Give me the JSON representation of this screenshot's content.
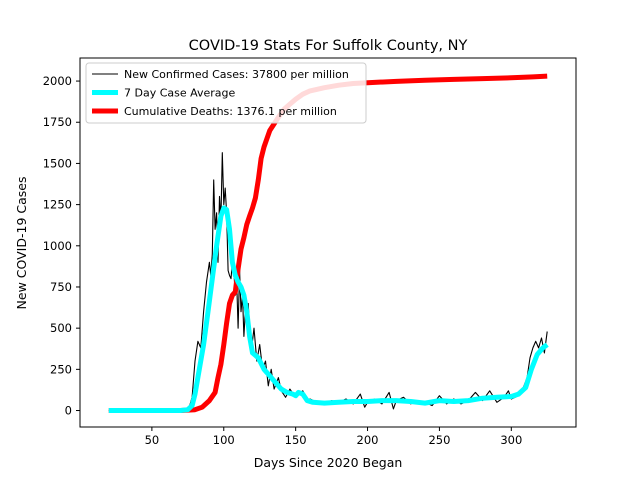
{
  "chart_data": {
    "type": "line",
    "title": "COVID-19 Stats For Suffolk County, NY",
    "xlabel": "Days Since 2020 Began",
    "ylabel": "New COVID-19 Cases",
    "xlim": [
      0,
      345
    ],
    "ylim": [
      -100,
      2140
    ],
    "xticks": [
      50,
      100,
      150,
      200,
      250,
      300
    ],
    "yticks": [
      0,
      250,
      500,
      750,
      1000,
      1250,
      1500,
      1750,
      2000
    ],
    "grid": false,
    "legend_position": "top-left",
    "series": [
      {
        "name": "New Confirmed Cases: 37800 per million",
        "color": "#000000",
        "points": [
          [
            20,
            0
          ],
          [
            30,
            0
          ],
          [
            40,
            0
          ],
          [
            50,
            0
          ],
          [
            60,
            0
          ],
          [
            70,
            0
          ],
          [
            74,
            5
          ],
          [
            76,
            20
          ],
          [
            78,
            80
          ],
          [
            80,
            300
          ],
          [
            82,
            420
          ],
          [
            84,
            380
          ],
          [
            86,
            600
          ],
          [
            88,
            780
          ],
          [
            90,
            900
          ],
          [
            91,
            820
          ],
          [
            92,
            950
          ],
          [
            93,
            1400
          ],
          [
            94,
            1100
          ],
          [
            95,
            1200
          ],
          [
            96,
            900
          ],
          [
            97,
            1300
          ],
          [
            98,
            1150
          ],
          [
            99,
            1565
          ],
          [
            100,
            1250
          ],
          [
            101,
            1350
          ],
          [
            102,
            1200
          ],
          [
            103,
            850
          ],
          [
            104,
            820
          ],
          [
            105,
            800
          ],
          [
            106,
            900
          ],
          [
            107,
            850
          ],
          [
            108,
            700
          ],
          [
            109,
            780
          ],
          [
            110,
            500
          ],
          [
            111,
            850
          ],
          [
            112,
            600
          ],
          [
            113,
            700
          ],
          [
            114,
            450
          ],
          [
            115,
            600
          ],
          [
            117,
            650
          ],
          [
            119,
            350
          ],
          [
            121,
            500
          ],
          [
            123,
            300
          ],
          [
            125,
            400
          ],
          [
            127,
            250
          ],
          [
            129,
            300
          ],
          [
            131,
            150
          ],
          [
            133,
            250
          ],
          [
            135,
            130
          ],
          [
            138,
            200
          ],
          [
            140,
            120
          ],
          [
            143,
            80
          ],
          [
            146,
            130
          ],
          [
            149,
            90
          ],
          [
            152,
            100
          ],
          [
            155,
            120
          ],
          [
            158,
            60
          ],
          [
            160,
            70
          ],
          [
            165,
            50
          ],
          [
            170,
            40
          ],
          [
            175,
            60
          ],
          [
            180,
            50
          ],
          [
            185,
            70
          ],
          [
            190,
            40
          ],
          [
            195,
            100
          ],
          [
            198,
            20
          ],
          [
            200,
            50
          ],
          [
            205,
            70
          ],
          [
            210,
            40
          ],
          [
            215,
            110
          ],
          [
            218,
            10
          ],
          [
            220,
            60
          ],
          [
            225,
            80
          ],
          [
            230,
            40
          ],
          [
            235,
            60
          ],
          [
            240,
            50
          ],
          [
            245,
            30
          ],
          [
            250,
            90
          ],
          [
            255,
            40
          ],
          [
            260,
            70
          ],
          [
            265,
            40
          ],
          [
            270,
            60
          ],
          [
            275,
            110
          ],
          [
            280,
            60
          ],
          [
            285,
            120
          ],
          [
            290,
            50
          ],
          [
            295,
            80
          ],
          [
            298,
            120
          ],
          [
            300,
            70
          ],
          [
            305,
            90
          ],
          [
            308,
            130
          ],
          [
            311,
            200
          ],
          [
            313,
            320
          ],
          [
            315,
            380
          ],
          [
            317,
            420
          ],
          [
            319,
            380
          ],
          [
            321,
            440
          ],
          [
            323,
            350
          ],
          [
            325,
            480
          ]
        ]
      },
      {
        "name": "7 Day Case Average",
        "color": "#00ffff",
        "points": [
          [
            20,
            0
          ],
          [
            40,
            0
          ],
          [
            60,
            0
          ],
          [
            70,
            0
          ],
          [
            75,
            5
          ],
          [
            78,
            30
          ],
          [
            80,
            100
          ],
          [
            83,
            250
          ],
          [
            86,
            400
          ],
          [
            89,
            600
          ],
          [
            92,
            800
          ],
          [
            95,
            1000
          ],
          [
            98,
            1180
          ],
          [
            100,
            1230
          ],
          [
            102,
            1220
          ],
          [
            104,
            1100
          ],
          [
            106,
            900
          ],
          [
            108,
            820
          ],
          [
            110,
            780
          ],
          [
            112,
            750
          ],
          [
            114,
            700
          ],
          [
            116,
            600
          ],
          [
            118,
            450
          ],
          [
            120,
            350
          ],
          [
            124,
            320
          ],
          [
            128,
            250
          ],
          [
            132,
            210
          ],
          [
            136,
            170
          ],
          [
            140,
            130
          ],
          [
            144,
            110
          ],
          [
            148,
            100
          ],
          [
            150,
            90
          ],
          [
            152,
            110
          ],
          [
            155,
            100
          ],
          [
            158,
            60
          ],
          [
            162,
            50
          ],
          [
            170,
            45
          ],
          [
            180,
            50
          ],
          [
            190,
            55
          ],
          [
            200,
            55
          ],
          [
            210,
            60
          ],
          [
            220,
            60
          ],
          [
            230,
            55
          ],
          [
            240,
            45
          ],
          [
            250,
            60
          ],
          [
            260,
            55
          ],
          [
            270,
            60
          ],
          [
            280,
            75
          ],
          [
            290,
            80
          ],
          [
            300,
            85
          ],
          [
            305,
            100
          ],
          [
            310,
            140
          ],
          [
            314,
            250
          ],
          [
            318,
            340
          ],
          [
            322,
            380
          ],
          [
            325,
            400
          ]
        ]
      },
      {
        "name": "Cumulative Deaths: 1376.1 per million",
        "color": "#ff0000",
        "points": [
          [
            20,
            0
          ],
          [
            40,
            0
          ],
          [
            60,
            0
          ],
          [
            70,
            0
          ],
          [
            80,
            5
          ],
          [
            85,
            20
          ],
          [
            90,
            60
          ],
          [
            94,
            110
          ],
          [
            96,
            200
          ],
          [
            98,
            280
          ],
          [
            100,
            400
          ],
          [
            102,
            530
          ],
          [
            104,
            650
          ],
          [
            106,
            700
          ],
          [
            108,
            720
          ],
          [
            110,
            860
          ],
          [
            112,
            980
          ],
          [
            114,
            1050
          ],
          [
            116,
            1130
          ],
          [
            118,
            1180
          ],
          [
            120,
            1230
          ],
          [
            122,
            1290
          ],
          [
            124,
            1400
          ],
          [
            126,
            1530
          ],
          [
            128,
            1600
          ],
          [
            130,
            1650
          ],
          [
            132,
            1700
          ],
          [
            135,
            1740
          ],
          [
            138,
            1780
          ],
          [
            142,
            1830
          ],
          [
            146,
            1860
          ],
          [
            150,
            1890
          ],
          [
            155,
            1920
          ],
          [
            160,
            1940
          ],
          [
            170,
            1960
          ],
          [
            180,
            1975
          ],
          [
            190,
            1985
          ],
          [
            200,
            1990
          ],
          [
            220,
            1998
          ],
          [
            240,
            2005
          ],
          [
            260,
            2010
          ],
          [
            280,
            2015
          ],
          [
            300,
            2020
          ],
          [
            315,
            2025
          ],
          [
            325,
            2030
          ]
        ]
      }
    ]
  }
}
